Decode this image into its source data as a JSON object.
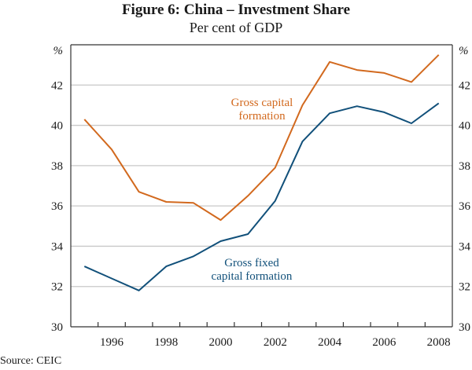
{
  "chart_data": {
    "type": "line",
    "title": "Figure 6: China – Investment Share",
    "subtitle": "Per cent of GDP",
    "xlabel": "",
    "ylabel": "%",
    "ylabel_right": "%",
    "x": [
      1995,
      1996,
      1997,
      1998,
      1999,
      2000,
      2001,
      2002,
      2003,
      2004,
      2005,
      2006,
      2007,
      2008
    ],
    "x_tick_labels": [
      "1996",
      "1998",
      "2000",
      "2002",
      "2004",
      "2006",
      "2008"
    ],
    "y_ticks": [
      30,
      32,
      34,
      36,
      38,
      40,
      42
    ],
    "ylim": [
      30,
      44
    ],
    "grid": true,
    "series": [
      {
        "name": "Gross capital formation",
        "color": "#d2691e",
        "values": [
          40.3,
          38.8,
          36.7,
          36.2,
          36.15,
          35.3,
          36.5,
          37.9,
          41.0,
          43.15,
          42.75,
          42.6,
          42.15,
          43.5
        ]
      },
      {
        "name": "Gross fixed capital formation",
        "color": "#11507a",
        "values": [
          33.0,
          32.4,
          31.8,
          33.0,
          33.5,
          34.25,
          34.6,
          36.25,
          39.2,
          40.6,
          40.95,
          40.65,
          40.1,
          41.1
        ]
      }
    ],
    "annotations": [
      {
        "text_lines": [
          "Gross capital",
          "formation"
        ],
        "series": "Gross capital formation"
      },
      {
        "text_lines": [
          "Gross fixed",
          "capital formation"
        ],
        "series": "Gross fixed capital formation"
      }
    ],
    "source": "Source: CEIC"
  }
}
